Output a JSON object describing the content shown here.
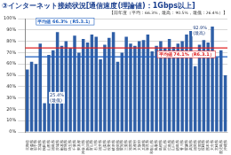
{
  "chart_data": {
    "type": "bar",
    "title": "③インターネット接続状況[通信速度(理論値)：1Gbps以上]",
    "subtitle": "【前年度（平均：66.3%，最高：90.5%，最低：26.4%）】",
    "categories": [
      "北海道",
      "青森県",
      "岩手県",
      "宮城県",
      "秋田県",
      "山形県",
      "福島県",
      "茨城県",
      "栃木県",
      "群馬県",
      "埼玉県",
      "千葉県",
      "東京都",
      "神奈川県",
      "新潟県",
      "富山県",
      "石川県",
      "福井県",
      "山梨県",
      "長野県",
      "岐阜県",
      "静岡県",
      "愛知県",
      "三重県",
      "滋賀県",
      "京都府",
      "大阪府",
      "兵庫県",
      "奈良県",
      "和歌山県",
      "鳥取県",
      "島根県",
      "岡山県",
      "広島県",
      "山口県",
      "徳島県",
      "香川県",
      "愛媛県",
      "高知県",
      "福岡県",
      "佐賀県",
      "長崎県",
      "熊本県",
      "大分県",
      "宮崎県",
      "鹿児島県",
      "沖縄県"
    ],
    "values": [
      55,
      62,
      60,
      78,
      25.4,
      68,
      72,
      88,
      76,
      80,
      74,
      85,
      70,
      82,
      79,
      86,
      84,
      64,
      77,
      83,
      88,
      62,
      70,
      84,
      78,
      76,
      80,
      81,
      86,
      71,
      76,
      80,
      74,
      82,
      75,
      78,
      80,
      86,
      89,
      58,
      77,
      81,
      79,
      92.9,
      66,
      72,
      50
    ],
    "color": "#2f5fa7",
    "ylim": [
      0,
      100
    ],
    "yticks": [
      {
        "value": 0,
        "label": "0%"
      },
      {
        "value": 10,
        "label": "10%"
      },
      {
        "value": 20,
        "label": "20%"
      },
      {
        "value": 30,
        "label": "30%"
      },
      {
        "value": 40,
        "label": "40%"
      },
      {
        "value": 50,
        "label": "50%"
      },
      {
        "value": 60,
        "label": "60%"
      },
      {
        "value": 70,
        "label": "70%"
      },
      {
        "value": 80,
        "label": "80%"
      },
      {
        "value": 90,
        "label": "90%"
      },
      {
        "value": 100,
        "label": "100%"
      }
    ],
    "grid": true,
    "reference_lines": [
      {
        "value": 66.3,
        "label": "平均値 66.3%（R5.3.1）",
        "color": "#1f5fbf"
      },
      {
        "value": 74.1,
        "label": "平均値 74.1%（R6.3.1）",
        "color": "#e02020"
      }
    ],
    "annotations": [
      {
        "index": 43,
        "lines": [
          "92.9%",
          "(最高)"
        ]
      },
      {
        "index": 4,
        "lines": [
          "25.4%",
          "(最低)"
        ]
      }
    ]
  }
}
